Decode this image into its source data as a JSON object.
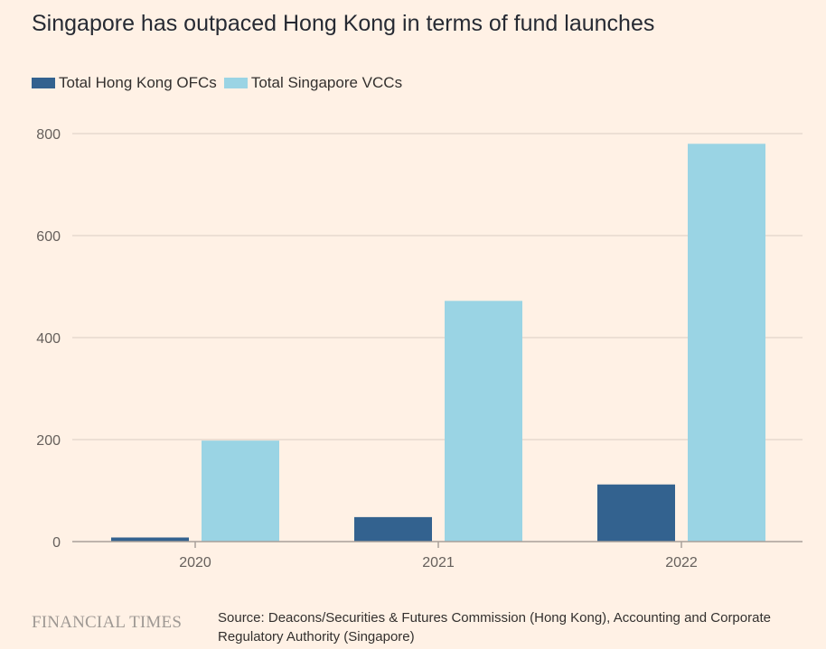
{
  "title": "Singapore has outpaced Hong Kong in terms of fund launches",
  "source": "Source: Deacons/Securities & Futures Commission (Hong Kong), Accounting and Corporate Regulatory Authority (Singapore)",
  "publisher": "FINANCIAL TIMES",
  "colors": {
    "background": "#fff1e5",
    "hong_kong": "#33628f",
    "singapore": "#9ad4e4",
    "gridline": "#e6d9ce",
    "axis": "#a8a09a"
  },
  "chart_data": {
    "type": "bar",
    "categories": [
      "2020",
      "2021",
      "2022"
    ],
    "series": [
      {
        "name": "Total Hong Kong OFCs",
        "values": [
          8,
          48,
          112
        ]
      },
      {
        "name": "Total Singapore VCCs",
        "values": [
          198,
          472,
          780
        ]
      }
    ],
    "ylim": [
      0,
      800
    ],
    "yticks": [
      "0",
      "200",
      "400",
      "600",
      "800"
    ],
    "grid": true,
    "legend_position": "top-left",
    "xlabel": "",
    "ylabel": ""
  }
}
